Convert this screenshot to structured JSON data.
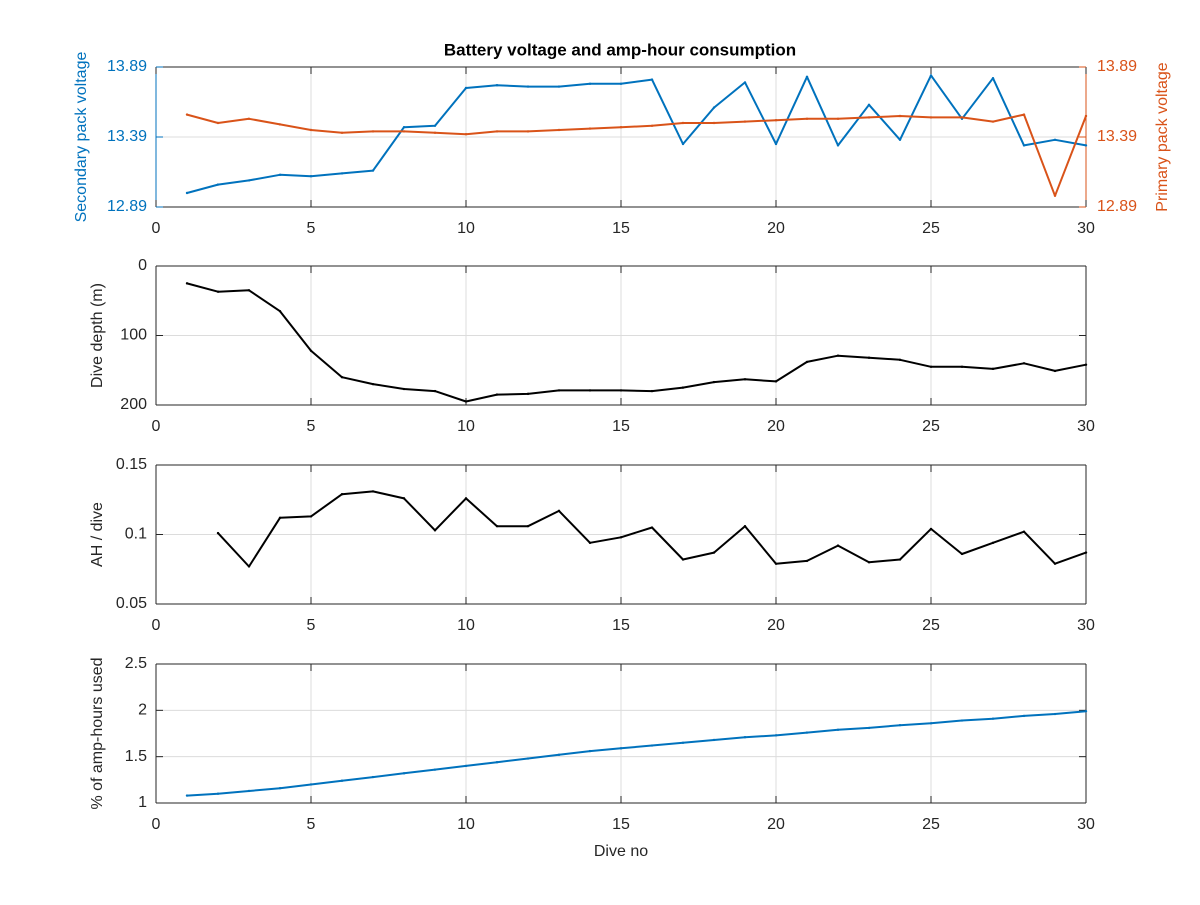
{
  "figure": {
    "title": "Battery voltage and amp-hour consumption",
    "colors": {
      "secondary": "#0072BD",
      "primary": "#D95319",
      "black": "#000000",
      "grid": "#dcdcdc"
    }
  },
  "chart_data": [
    {
      "type": "line",
      "title": "Battery voltage and amp-hour consumption",
      "xlabel": "",
      "ylabel": "Secondary pack voltage",
      "ylabel_right": "Primary pack voltage",
      "xlim": [
        0,
        30
      ],
      "ylim": [
        12.89,
        13.89
      ],
      "xticks": [
        "0",
        "5",
        "10",
        "15",
        "20",
        "25",
        "30"
      ],
      "yticks": [
        "12.89",
        "13.39",
        "13.89"
      ],
      "yticks_right": [
        "12.89",
        "13.39",
        "13.89"
      ],
      "grid": true,
      "series": [
        {
          "axis": "left",
          "color": "#0072BD",
          "x": [
            1,
            2,
            3,
            4,
            5,
            6,
            7,
            8,
            9,
            10,
            11,
            12,
            13,
            14,
            15,
            16,
            17,
            18,
            19,
            20,
            21,
            22,
            23,
            24,
            25,
            26,
            27,
            28,
            29,
            30
          ],
          "y": [
            12.99,
            13.05,
            13.08,
            13.12,
            13.11,
            13.13,
            13.15,
            13.46,
            13.47,
            13.74,
            13.76,
            13.75,
            13.75,
            13.77,
            13.77,
            13.8,
            13.34,
            13.6,
            13.78,
            13.34,
            13.82,
            13.33,
            13.62,
            13.37,
            13.83,
            13.52,
            13.81,
            13.33,
            13.37,
            13.33
          ]
        },
        {
          "axis": "right",
          "color": "#D95319",
          "x": [
            1,
            2,
            3,
            4,
            5,
            6,
            7,
            8,
            9,
            10,
            11,
            12,
            13,
            14,
            15,
            16,
            17,
            18,
            19,
            20,
            21,
            22,
            23,
            24,
            25,
            26,
            27,
            28,
            29,
            30
          ],
          "y": [
            13.55,
            13.49,
            13.52,
            13.48,
            13.44,
            13.42,
            13.43,
            13.43,
            13.42,
            13.41,
            13.43,
            13.43,
            13.44,
            13.45,
            13.46,
            13.47,
            13.49,
            13.49,
            13.5,
            13.51,
            13.52,
            13.52,
            13.53,
            13.54,
            13.53,
            13.53,
            13.5,
            13.55,
            12.97,
            13.54
          ]
        }
      ]
    },
    {
      "type": "line",
      "xlabel": "",
      "ylabel": "Dive depth (m)",
      "xlim": [
        0,
        30
      ],
      "ylim": [
        0,
        200
      ],
      "y_reversed": true,
      "xticks": [
        "0",
        "5",
        "10",
        "15",
        "20",
        "25",
        "30"
      ],
      "yticks": [
        "0",
        "100",
        "200"
      ],
      "grid": true,
      "series": [
        {
          "color": "#000000",
          "x": [
            1,
            2,
            3,
            4,
            5,
            6,
            7,
            8,
            9,
            10,
            11,
            12,
            13,
            14,
            15,
            16,
            17,
            18,
            19,
            20,
            21,
            22,
            23,
            24,
            25,
            26,
            27,
            28,
            29,
            30
          ],
          "y": [
            25,
            37,
            35,
            65,
            122,
            160,
            170,
            177,
            180,
            195,
            185,
            184,
            179,
            179,
            179,
            180,
            175,
            167,
            163,
            166,
            138,
            129,
            132,
            135,
            145,
            145,
            148,
            140,
            151,
            142
          ]
        }
      ]
    },
    {
      "type": "line",
      "xlabel": "",
      "ylabel": "AH / dive",
      "xlim": [
        0,
        30
      ],
      "ylim": [
        0.05,
        0.15
      ],
      "xticks": [
        "0",
        "5",
        "10",
        "15",
        "20",
        "25",
        "30"
      ],
      "yticks": [
        "0.05",
        "0.1",
        "0.15"
      ],
      "grid": true,
      "series": [
        {
          "color": "#000000",
          "x": [
            2,
            3,
            4,
            5,
            6,
            7,
            8,
            9,
            10,
            11,
            12,
            13,
            14,
            15,
            16,
            17,
            18,
            19,
            20,
            21,
            22,
            23,
            24,
            25,
            26,
            27,
            28,
            29,
            30
          ],
          "y": [
            0.101,
            0.077,
            0.112,
            0.113,
            0.129,
            0.131,
            0.126,
            0.103,
            0.126,
            0.106,
            0.106,
            0.117,
            0.094,
            0.098,
            0.105,
            0.082,
            0.087,
            0.106,
            0.079,
            0.081,
            0.092,
            0.08,
            0.082,
            0.104,
            0.086,
            0.094,
            0.102,
            0.079,
            0.087
          ]
        }
      ]
    },
    {
      "type": "line",
      "xlabel": "Dive no",
      "ylabel": "% of amp-hours used",
      "xlim": [
        0,
        30
      ],
      "ylim": [
        1,
        2.5
      ],
      "xticks": [
        "0",
        "5",
        "10",
        "15",
        "20",
        "25",
        "30"
      ],
      "yticks": [
        "1",
        "1.5",
        "2",
        "2.5"
      ],
      "grid": true,
      "series": [
        {
          "color": "#0072BD",
          "x": [
            1,
            2,
            3,
            4,
            5,
            6,
            7,
            8,
            9,
            10,
            11,
            12,
            13,
            14,
            15,
            16,
            17,
            18,
            19,
            20,
            21,
            22,
            23,
            24,
            25,
            26,
            27,
            28,
            29,
            30
          ],
          "y": [
            1.08,
            1.1,
            1.13,
            1.16,
            1.2,
            1.24,
            1.28,
            1.32,
            1.36,
            1.4,
            1.44,
            1.48,
            1.52,
            1.56,
            1.59,
            1.62,
            1.65,
            1.68,
            1.71,
            1.73,
            1.76,
            1.79,
            1.81,
            1.84,
            1.86,
            1.89,
            1.91,
            1.94,
            1.96,
            1.99
          ]
        }
      ]
    }
  ]
}
